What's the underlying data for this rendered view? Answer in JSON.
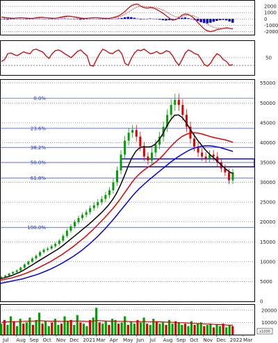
{
  "chart_data": [
    {
      "type": "bar",
      "panel": "macd",
      "ylim": [
        -2500,
        3000
      ],
      "yticks": [
        "2000",
        "1000",
        "0",
        "-1000",
        "-2000"
      ],
      "ytick_values": [
        2000,
        1000,
        0,
        -1000,
        -2000
      ],
      "histogram": [
        -50,
        -80,
        -120,
        -60,
        10,
        40,
        20,
        -10,
        -60,
        -30,
        20,
        40,
        60,
        30,
        10,
        -20,
        -40,
        -20,
        20,
        60,
        80,
        50,
        30,
        -10,
        -60,
        -120,
        -90,
        -40,
        10,
        40,
        30,
        0,
        -40,
        -60,
        -30,
        10,
        50,
        90,
        150,
        260,
        320,
        280,
        180,
        60,
        -80,
        -40,
        30,
        80,
        40,
        -40,
        -120,
        -200,
        -250,
        -200,
        -100,
        20,
        120,
        180,
        230,
        120,
        -20,
        -150,
        -320,
        -500,
        -650,
        -700,
        -600,
        -450,
        -300,
        -200,
        -150,
        -220,
        -400,
        -600
      ],
      "macd_line": [
        300,
        200,
        150,
        100,
        100,
        150,
        200,
        180,
        100,
        80,
        100,
        200,
        250,
        250,
        200,
        150,
        100,
        120,
        200,
        300,
        400,
        450,
        400,
        300,
        200,
        100,
        50,
        100,
        150,
        200,
        200,
        150,
        100,
        80,
        100,
        200,
        300,
        500,
        800,
        1200,
        1700,
        2100,
        2300,
        2350,
        2000,
        1800,
        1700,
        1800,
        1700,
        1500,
        1200,
        900,
        500,
        100,
        -200,
        -100,
        200,
        600,
        800,
        700,
        400,
        0,
        -600,
        -1100,
        -1600,
        -1900,
        -2000,
        -1900,
        -1700,
        -1600,
        -1500,
        -1400,
        -1500,
        -1600
      ],
      "signal_line": [
        350,
        280,
        220,
        170,
        140,
        130,
        150,
        170,
        160,
        130,
        110,
        130,
        170,
        200,
        210,
        190,
        160,
        140,
        150,
        200,
        270,
        340,
        380,
        360,
        300,
        220,
        150,
        120,
        130,
        160,
        190,
        180,
        150,
        120,
        110,
        140,
        200,
        320,
        500,
        750,
        1050,
        1400,
        1700,
        1950,
        2050,
        2000,
        1950,
        1900,
        1850,
        1750,
        1600,
        1400,
        1150,
        850,
        550,
        350,
        300,
        400,
        530,
        600,
        560,
        450,
        200,
        -150,
        -500,
        -850,
        -1150,
        -1350,
        -1450,
        -1500,
        -1500,
        -1480,
        -1490,
        -1520
      ]
    },
    {
      "type": "line",
      "panel": "rsi",
      "ytick_values": [
        50
      ],
      "yticks": [
        "50"
      ],
      "ylim": [
        5,
        95
      ],
      "rsi": [
        40,
        45,
        60,
        62,
        58,
        55,
        60,
        65,
        62,
        60,
        70,
        72,
        68,
        65,
        55,
        48,
        60,
        68,
        70,
        66,
        60,
        55,
        50,
        58,
        66,
        70,
        62,
        55,
        30,
        28,
        45,
        60,
        72,
        68,
        62,
        60,
        66,
        70,
        60,
        35,
        30,
        48,
        62,
        70,
        68,
        72,
        66,
        60,
        62,
        66,
        60,
        62,
        68,
        65,
        55,
        40,
        30,
        45,
        62,
        70,
        66,
        60,
        58,
        46,
        32,
        28,
        36,
        50,
        60,
        55,
        45,
        40,
        30,
        32
      ],
      "reference_line": 30
    },
    {
      "type": "line",
      "panel": "price",
      "ylim": [
        0,
        56000
      ],
      "yticks": [
        "55000",
        "50000",
        "45000",
        "40000",
        "35000",
        "30000",
        "25000",
        "20000",
        "15000",
        "10000",
        "5000",
        "0"
      ],
      "ytick_values": [
        55000,
        50000,
        45000,
        40000,
        35000,
        30000,
        25000,
        20000,
        15000,
        10000,
        5000,
        0
      ],
      "fib_levels": [
        {
          "label": "0.0%",
          "value": 51200
        },
        {
          "label": "23.6%",
          "value": 43600
        },
        {
          "label": "38.2%",
          "value": 38800
        },
        {
          "label": "50.0%",
          "value": 35000
        },
        {
          "label": "61.8%",
          "value": 31100
        },
        {
          "label": "100.0%",
          "value": 18600
        }
      ],
      "box": {
        "y_low": 33900,
        "y_high": 35900
      },
      "price_close": [
        6200,
        6500,
        7000,
        7400,
        7800,
        8500,
        9300,
        10000,
        10800,
        11500,
        12400,
        13000,
        13300,
        13900,
        14500,
        15300,
        16500,
        17800,
        18900,
        20000,
        21000,
        21800,
        22500,
        23500,
        24200,
        25000,
        25800,
        26800,
        28000,
        30000,
        33000,
        37000,
        40500,
        42500,
        43200,
        41500,
        39000,
        36500,
        35500,
        37500,
        39500,
        41500,
        44000,
        47000,
        49500,
        50800,
        49500,
        47000,
        44000,
        41000,
        39000,
        37500,
        36500,
        36000,
        37000,
        36500,
        35000,
        33500,
        32500,
        30500,
        32500
      ],
      "ma_black": [
        5700,
        5900,
        6200,
        6500,
        6900,
        7300,
        7800,
        8400,
        9000,
        9600,
        10200,
        10800,
        11400,
        12000,
        12600,
        13200,
        13900,
        14700,
        15500,
        16300,
        17100,
        17900,
        18700,
        19500,
        20400,
        21300,
        22200,
        23200,
        24300,
        25600,
        27200,
        29200,
        31500,
        34000,
        36200,
        37800,
        38700,
        39000,
        38900,
        39000,
        39600,
        40700,
        42300,
        44200,
        45800,
        46900,
        47000,
        46300,
        45000,
        43400,
        41900,
        40500,
        39300,
        38100,
        37100,
        36200,
        35300,
        34400,
        33500,
        32700,
        32200
      ],
      "ma_red": [
        5300,
        5500,
        5700,
        5900,
        6200,
        6500,
        6800,
        7200,
        7600,
        8000,
        8500,
        9000,
        9500,
        10000,
        10600,
        11200,
        11800,
        12500,
        13200,
        13900,
        14700,
        15500,
        16300,
        17200,
        18100,
        19100,
        20100,
        21100,
        22200,
        23300,
        24500,
        25800,
        27200,
        28600,
        30000,
        31200,
        32200,
        33000,
        33700,
        34300,
        35000,
        35800,
        36800,
        37900,
        39000,
        40000,
        40900,
        41600,
        42100,
        42400,
        42500,
        42400,
        42200,
        41900,
        41600,
        41300,
        41100,
        40900,
        40700,
        40400,
        40100
      ],
      "ma_blue": [
        4500,
        4700,
        4900,
        5100,
        5300,
        5500,
        5700,
        6000,
        6300,
        6600,
        6900,
        7300,
        7700,
        8100,
        8600,
        9100,
        9600,
        10200,
        10800,
        11400,
        12100,
        12800,
        13600,
        14400,
        15300,
        16200,
        17200,
        18200,
        19300,
        20400,
        21600,
        22800,
        24000,
        25200,
        26400,
        27500,
        28500,
        29400,
        30300,
        31100,
        31900,
        32700,
        33500,
        34300,
        35100,
        35800,
        36500,
        37100,
        37700,
        38200,
        38600,
        38900,
        39100,
        39200,
        39200,
        39100,
        38900,
        38700,
        38400,
        38100,
        37800
      ]
    },
    {
      "type": "bar",
      "panel": "volume",
      "ylim": [
        0,
        25000
      ],
      "unit_label": "x1000",
      "yticks": [
        "20000",
        "10000"
      ],
      "ytick_values": [
        20000,
        10000
      ],
      "volume": [
        9000,
        12000,
        8000,
        15000,
        11000,
        7000,
        13000,
        9000,
        10000,
        14000,
        8000,
        12000,
        18000,
        9000,
        11000,
        7000,
        10000,
        13000,
        8000,
        9000,
        15000,
        11000,
        12000,
        8000,
        16000,
        10000,
        9000,
        7000,
        12000,
        14000,
        22000,
        10000,
        9000,
        11000,
        8000,
        13000,
        12000,
        9000,
        10000,
        15000,
        8000,
        11000,
        9000,
        12000,
        10000,
        14000,
        9000,
        8000,
        13000,
        11000,
        9000,
        10000,
        8000,
        12000,
        9000,
        11000,
        10000,
        8000,
        9000,
        7000,
        11000,
        8000,
        9000,
        10000,
        7000,
        8000,
        9000,
        6000,
        8000,
        7000,
        9000,
        6000,
        8000,
        7000
      ],
      "volume_ma": [
        10000,
        10300,
        10500,
        10600,
        10700,
        10700,
        10800,
        10900,
        11000,
        11100,
        11100,
        11200,
        11400,
        11300,
        11200,
        11100,
        11000,
        11100,
        11000,
        10900,
        11000,
        11100,
        11200,
        11100,
        11200,
        11100,
        11000,
        10800,
        10900,
        11100,
        11600,
        11500,
        11300,
        11200,
        11000,
        11000,
        11000,
        10900,
        10900,
        11000,
        10800,
        10700,
        10600,
        10700,
        10700,
        10800,
        10700,
        10600,
        10600,
        10600,
        10500,
        10400,
        10200,
        10200,
        10100,
        10000,
        9900,
        9800,
        9700,
        9500,
        9400,
        9200,
        9100,
        9000,
        8800,
        8700,
        8600,
        8400,
        8300,
        8200,
        8100,
        7900,
        7800,
        7700
      ]
    }
  ],
  "x_axis": {
    "labels": [
      "Jul",
      "Aug",
      "Sep",
      "Oct",
      "Nov",
      "Dec",
      "2021",
      "Mar",
      "Apr",
      "May",
      "Jun",
      "Jul",
      "Aug",
      "Sep",
      "Oct",
      "Nov",
      "Dec",
      "2022",
      "Mar"
    ]
  },
  "colors": {
    "grid": "#000000",
    "ma_black": "#000000",
    "ma_red": "#e00000",
    "ma_blue": "#0000e0",
    "fib": "#3344dd",
    "candle_up": "#00a000",
    "candle_down": "#dd0000",
    "macd_hist_pos": "#0000cc",
    "macd_hist_neg": "#0000cc",
    "oscillator": "#cc0000",
    "box": "#0000aa"
  }
}
